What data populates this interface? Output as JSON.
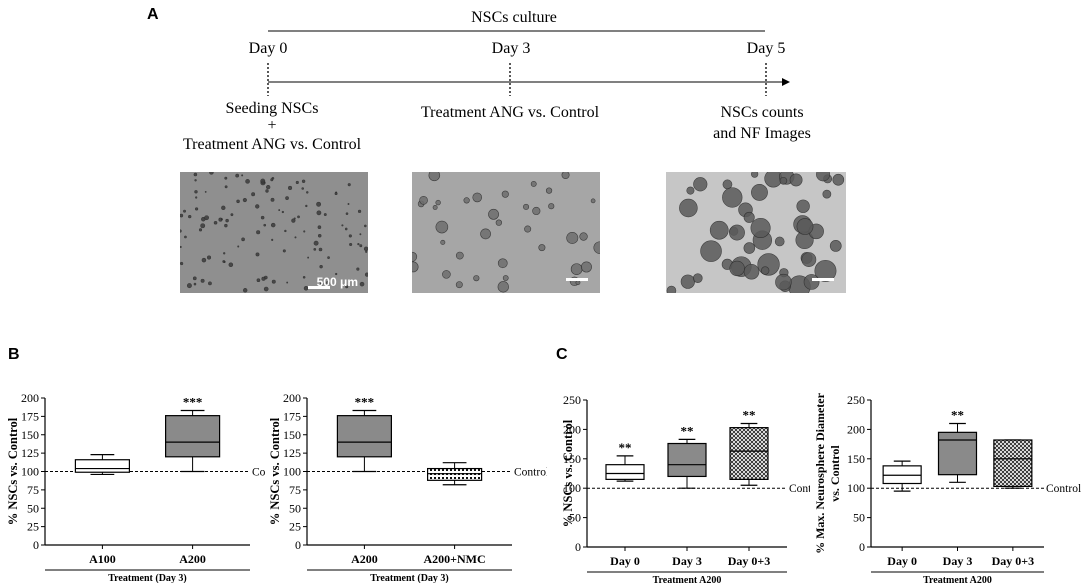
{
  "panel_labels": {
    "a": "A",
    "b": "B",
    "c": "C"
  },
  "timeline": {
    "header": "NSCs culture",
    "days": [
      "Day 0",
      "Day 3",
      "Day 5"
    ],
    "events": {
      "day0_line1": "Seeding NSCs",
      "day0_line2": "+",
      "day0_line3": "Treatment ANG vs. Control",
      "day3": "Treatment ANG vs. Control",
      "day5_line1": "NSCs counts",
      "day5_line2": "and NF Images"
    },
    "scale_bar_label": "500 μm"
  },
  "control_label": "Control",
  "chart_data": [
    {
      "type": "boxplot",
      "ylabel": "% NSCs vs. Control",
      "xlabel": "Treatment (Day 3)",
      "ylim": [
        0,
        200
      ],
      "yticks": [
        0,
        25,
        50,
        75,
        100,
        125,
        150,
        175,
        200
      ],
      "reference_line": 100,
      "categories": [
        "A100",
        "A200"
      ],
      "boxes": [
        {
          "name": "A100",
          "min": 96,
          "q1": 99,
          "median": 104,
          "q3": 116,
          "max": 123,
          "fill": "white",
          "sig": ""
        },
        {
          "name": "A200",
          "min": 100,
          "q1": 120,
          "median": 140,
          "q3": 176,
          "max": 183,
          "fill": "gray",
          "sig": "***"
        }
      ]
    },
    {
      "type": "boxplot",
      "ylabel": "% NSCs vs. Control",
      "xlabel": "Treatment (Day 3)",
      "ylim": [
        0,
        200
      ],
      "yticks": [
        0,
        25,
        50,
        75,
        100,
        125,
        150,
        175,
        200
      ],
      "reference_line": 100,
      "categories": [
        "A200",
        "A200+NMC"
      ],
      "boxes": [
        {
          "name": "A200",
          "min": 100,
          "q1": 120,
          "median": 140,
          "q3": 176,
          "max": 183,
          "fill": "gray",
          "sig": "***"
        },
        {
          "name": "A200+NMC",
          "min": 82,
          "q1": 88,
          "median": 97,
          "q3": 104,
          "max": 112,
          "fill": "grid",
          "sig": ""
        }
      ]
    },
    {
      "type": "boxplot",
      "ylabel": "% NSCs vs. Control",
      "xlabel": "Treatment A200",
      "ylim": [
        0,
        250
      ],
      "yticks": [
        0,
        50,
        100,
        150,
        200,
        250
      ],
      "reference_line": 100,
      "categories": [
        "Day 0",
        "Day 3",
        "Day 0+3"
      ],
      "boxes": [
        {
          "name": "Day 0",
          "min": 112,
          "q1": 115,
          "median": 125,
          "q3": 140,
          "max": 155,
          "fill": "white",
          "sig": "**"
        },
        {
          "name": "Day 3",
          "min": 100,
          "q1": 120,
          "median": 140,
          "q3": 176,
          "max": 183,
          "fill": "gray",
          "sig": "**"
        },
        {
          "name": "Day 0+3",
          "min": 105,
          "q1": 115,
          "median": 163,
          "q3": 203,
          "max": 210,
          "fill": "check",
          "sig": "**"
        }
      ]
    },
    {
      "type": "boxplot",
      "ylabel_lines": [
        "% Max. Neurosphere Diameter",
        "vs. Control"
      ],
      "xlabel": "Treatment A200",
      "ylim": [
        0,
        250
      ],
      "yticks": [
        0,
        50,
        100,
        150,
        200,
        250
      ],
      "reference_line": 100,
      "categories": [
        "Day 0",
        "Day 3",
        "Day 0+3"
      ],
      "boxes": [
        {
          "name": "Day 0",
          "min": 95,
          "q1": 108,
          "median": 122,
          "q3": 138,
          "max": 146,
          "fill": "white",
          "sig": ""
        },
        {
          "name": "Day 3",
          "min": 110,
          "q1": 123,
          "median": 182,
          "q3": 195,
          "max": 210,
          "fill": "gray",
          "sig": "**"
        },
        {
          "name": "Day 0+3",
          "min": 100,
          "q1": 103,
          "median": 150,
          "q3": 182,
          "max": 182,
          "fill": "check",
          "sig": ""
        }
      ]
    }
  ]
}
